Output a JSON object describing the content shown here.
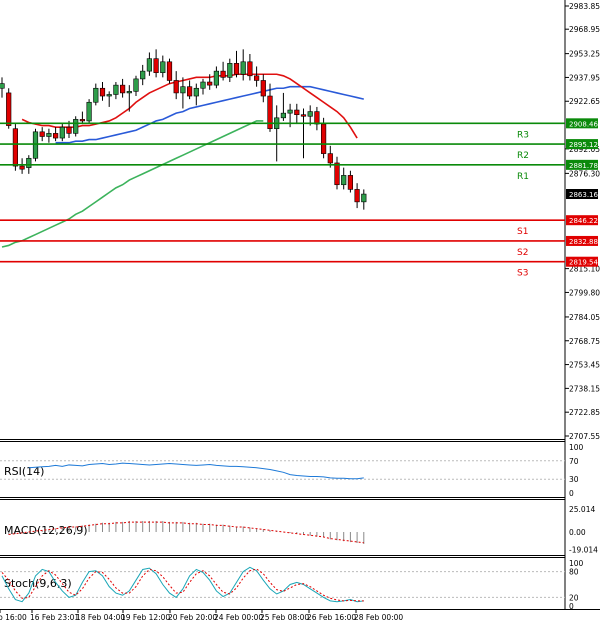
{
  "chart_data": {
    "type": "candlestick",
    "symbol_levels": {
      "resistance": [
        {
          "name": "R3",
          "value": 2908.46,
          "color": "#0a8a0a"
        },
        {
          "name": "R2",
          "value": 2895.12,
          "color": "#0a8a0a"
        },
        {
          "name": "R1",
          "value": 2881.78,
          "color": "#0a8a0a"
        }
      ],
      "support": [
        {
          "name": "S1",
          "value": 2846.22,
          "color": "#e00000"
        },
        {
          "name": "S2",
          "value": 2832.88,
          "color": "#e00000"
        },
        {
          "name": "S3",
          "value": 2819.54,
          "color": "#e00000"
        }
      ]
    },
    "current_price": {
      "value": "2863.16"
    },
    "price_axis": {
      "ticks": [
        "2983.85",
        "2968.95",
        "2953.25",
        "2937.95",
        "2922.65",
        "2892.05",
        "2876.30",
        "2815.10",
        "2799.80",
        "2784.05",
        "2768.75",
        "2753.45",
        "2738.15",
        "2722.85",
        "2707.55"
      ],
      "ylim": [
        2707.55,
        2986.0
      ]
    },
    "x_labels": [
      "b 16:00",
      "16 Feb 23:01",
      "18 Feb 04:00",
      "19 Feb 12:00",
      "20 Feb 20:00",
      "24 Feb 00:00",
      "25 Feb 08:00",
      "26 Feb 16:00",
      "28 Feb 00:00"
    ],
    "candles": [
      {
        "o": 2931,
        "h": 2938,
        "l": 2925,
        "c": 2934
      },
      {
        "o": 2928,
        "h": 2931,
        "l": 2905,
        "c": 2907
      },
      {
        "o": 2905,
        "h": 2908,
        "l": 2878,
        "c": 2881
      },
      {
        "o": 2881,
        "h": 2886,
        "l": 2876,
        "c": 2879
      },
      {
        "o": 2880,
        "h": 2888,
        "l": 2876,
        "c": 2886
      },
      {
        "o": 2886,
        "h": 2905,
        "l": 2884,
        "c": 2903
      },
      {
        "o": 2903,
        "h": 2906,
        "l": 2897,
        "c": 2900
      },
      {
        "o": 2900,
        "h": 2905,
        "l": 2896,
        "c": 2902
      },
      {
        "o": 2902,
        "h": 2906,
        "l": 2897,
        "c": 2899
      },
      {
        "o": 2899,
        "h": 2908,
        "l": 2897,
        "c": 2906
      },
      {
        "o": 2906,
        "h": 2910,
        "l": 2899,
        "c": 2902
      },
      {
        "o": 2902,
        "h": 2913,
        "l": 2900,
        "c": 2911
      },
      {
        "o": 2911,
        "h": 2916,
        "l": 2908,
        "c": 2910
      },
      {
        "o": 2910,
        "h": 2924,
        "l": 2909,
        "c": 2922
      },
      {
        "o": 2922,
        "h": 2934,
        "l": 2920,
        "c": 2931
      },
      {
        "o": 2931,
        "h": 2935,
        "l": 2923,
        "c": 2926
      },
      {
        "o": 2926,
        "h": 2929,
        "l": 2919,
        "c": 2927
      },
      {
        "o": 2927,
        "h": 2935,
        "l": 2924,
        "c": 2933
      },
      {
        "o": 2933,
        "h": 2937,
        "l": 2925,
        "c": 2928
      },
      {
        "o": 2928,
        "h": 2933,
        "l": 2916,
        "c": 2929
      },
      {
        "o": 2929,
        "h": 2939,
        "l": 2926,
        "c": 2937
      },
      {
        "o": 2937,
        "h": 2946,
        "l": 2933,
        "c": 2942
      },
      {
        "o": 2942,
        "h": 2954,
        "l": 2939,
        "c": 2950
      },
      {
        "o": 2950,
        "h": 2956,
        "l": 2938,
        "c": 2941
      },
      {
        "o": 2941,
        "h": 2952,
        "l": 2938,
        "c": 2948
      },
      {
        "o": 2948,
        "h": 2950,
        "l": 2934,
        "c": 2936
      },
      {
        "o": 2936,
        "h": 2942,
        "l": 2924,
        "c": 2928
      },
      {
        "o": 2928,
        "h": 2938,
        "l": 2918,
        "c": 2932
      },
      {
        "o": 2932,
        "h": 2936,
        "l": 2924,
        "c": 2926
      },
      {
        "o": 2926,
        "h": 2934,
        "l": 2920,
        "c": 2931
      },
      {
        "o": 2931,
        "h": 2937,
        "l": 2927,
        "c": 2935
      },
      {
        "o": 2935,
        "h": 2940,
        "l": 2930,
        "c": 2933
      },
      {
        "o": 2933,
        "h": 2945,
        "l": 2931,
        "c": 2942
      },
      {
        "o": 2942,
        "h": 2948,
        "l": 2936,
        "c": 2938
      },
      {
        "o": 2938,
        "h": 2950,
        "l": 2935,
        "c": 2947
      },
      {
        "o": 2947,
        "h": 2955,
        "l": 2938,
        "c": 2940
      },
      {
        "o": 2940,
        "h": 2956,
        "l": 2936,
        "c": 2948
      },
      {
        "o": 2948,
        "h": 2953,
        "l": 2936,
        "c": 2939
      },
      {
        "o": 2939,
        "h": 2945,
        "l": 2932,
        "c": 2936
      },
      {
        "o": 2936,
        "h": 2940,
        "l": 2922,
        "c": 2926
      },
      {
        "o": 2926,
        "h": 2934,
        "l": 2903,
        "c": 2905
      },
      {
        "o": 2905,
        "h": 2920,
        "l": 2884,
        "c": 2912
      },
      {
        "o": 2912,
        "h": 2928,
        "l": 2910,
        "c": 2915
      },
      {
        "o": 2915,
        "h": 2921,
        "l": 2906,
        "c": 2917
      },
      {
        "o": 2917,
        "h": 2921,
        "l": 2908,
        "c": 2914
      },
      {
        "o": 2914,
        "h": 2918,
        "l": 2886,
        "c": 2913
      },
      {
        "o": 2913,
        "h": 2920,
        "l": 2907,
        "c": 2916
      },
      {
        "o": 2916,
        "h": 2919,
        "l": 2904,
        "c": 2908
      },
      {
        "o": 2908,
        "h": 2912,
        "l": 2886,
        "c": 2889
      },
      {
        "o": 2889,
        "h": 2894,
        "l": 2880,
        "c": 2883
      },
      {
        "o": 2883,
        "h": 2887,
        "l": 2866,
        "c": 2869
      },
      {
        "o": 2869,
        "h": 2880,
        "l": 2866,
        "c": 2875
      },
      {
        "o": 2875,
        "h": 2878,
        "l": 2864,
        "c": 2866
      },
      {
        "o": 2866,
        "h": 2870,
        "l": 2854,
        "c": 2858
      },
      {
        "o": 2858,
        "h": 2866,
        "l": 2853,
        "c": 2863
      }
    ],
    "ma_red": [
      2911,
      2909,
      2908,
      2907,
      2907,
      2906,
      2906,
      2906,
      2906,
      2907,
      2907,
      2908,
      2909,
      2910,
      2912,
      2915,
      2918,
      2922,
      2925,
      2928,
      2930,
      2932,
      2934,
      2935,
      2936,
      2937,
      2938,
      2938,
      2938,
      2939,
      2939,
      2939,
      2940,
      2940,
      2940,
      2940,
      2940,
      2940,
      2940,
      2939,
      2937,
      2934,
      2931,
      2928,
      2925,
      2922,
      2919,
      2916,
      2912,
      2906,
      2899
    ],
    "ma_blue": [
      2896,
      2896,
      2896,
      2897,
      2897,
      2898,
      2898,
      2899,
      2900,
      2901,
      2902,
      2903,
      2904,
      2906,
      2908,
      2910,
      2911,
      2913,
      2915,
      2916,
      2918,
      2919,
      2920,
      2921,
      2922,
      2923,
      2924,
      2925,
      2926,
      2927,
      2928,
      2929,
      2930,
      2931,
      2931,
      2932,
      2932,
      2932,
      2932,
      2931,
      2930,
      2929,
      2928,
      2927,
      2926,
      2925,
      2924
    ],
    "ma_green": [
      2829,
      2830,
      2832,
      2833,
      2835,
      2837,
      2839,
      2841,
      2843,
      2845,
      2847,
      2850,
      2852,
      2855,
      2858,
      2861,
      2864,
      2867,
      2869,
      2872,
      2874,
      2876,
      2878,
      2880,
      2882,
      2884,
      2886,
      2888,
      2890,
      2892,
      2894,
      2896,
      2898,
      2900,
      2902,
      2904,
      2906,
      2908,
      2910,
      2910
    ],
    "rsi": {
      "label": "RSI(14)",
      "ticks": [
        "100",
        "70",
        "30",
        "0"
      ],
      "values": [
        55,
        56,
        57,
        58,
        60,
        58,
        61,
        60,
        59,
        62,
        63,
        64,
        62,
        63,
        65,
        64,
        63,
        62,
        61,
        62,
        63,
        64,
        63,
        62,
        61,
        60,
        61,
        62,
        60,
        59,
        58,
        58,
        57,
        56,
        55,
        53,
        51,
        48,
        45,
        40,
        38,
        37,
        36,
        36,
        35,
        33,
        32,
        32,
        31,
        31,
        33
      ]
    },
    "macd": {
      "label": "MACD(12,26,9)",
      "ticks": [
        "25.014",
        "0.00",
        "-19.014"
      ],
      "values": [
        -3,
        -2,
        -1,
        0,
        1,
        2,
        3,
        4,
        5,
        6,
        6,
        7,
        8,
        9,
        10,
        10,
        11,
        11,
        12,
        12,
        12,
        12,
        12,
        12,
        11,
        11,
        11,
        10,
        10,
        9,
        9,
        8,
        8,
        7,
        6,
        6,
        5,
        4,
        3,
        2,
        1,
        0,
        -1,
        -2,
        -3,
        -4,
        -5,
        -6,
        -8,
        -9,
        -10,
        -11,
        -12,
        -13
      ]
    },
    "stoch": {
      "label": "Stoch(9,6,3)",
      "ticks": [
        "100",
        "80",
        "20",
        "0"
      ],
      "k": [
        70,
        40,
        15,
        10,
        30,
        70,
        85,
        80,
        55,
        35,
        20,
        25,
        55,
        80,
        82,
        70,
        45,
        30,
        25,
        35,
        60,
        85,
        88,
        75,
        50,
        30,
        20,
        40,
        70,
        85,
        78,
        60,
        35,
        22,
        30,
        55,
        80,
        90,
        82,
        60,
        40,
        28,
        35,
        50,
        55,
        50,
        40,
        30,
        20,
        12,
        10,
        12,
        15,
        10,
        12
      ],
      "d": [
        78,
        60,
        35,
        18,
        20,
        45,
        70,
        82,
        72,
        52,
        32,
        25,
        40,
        65,
        80,
        78,
        62,
        42,
        30,
        30,
        45,
        70,
        85,
        82,
        68,
        48,
        30,
        32,
        55,
        75,
        82,
        70,
        50,
        32,
        28,
        42,
        65,
        82,
        86,
        75,
        55,
        38,
        34,
        42,
        50,
        52,
        45,
        35,
        25,
        18,
        14,
        12,
        13,
        12,
        12
      ]
    }
  }
}
